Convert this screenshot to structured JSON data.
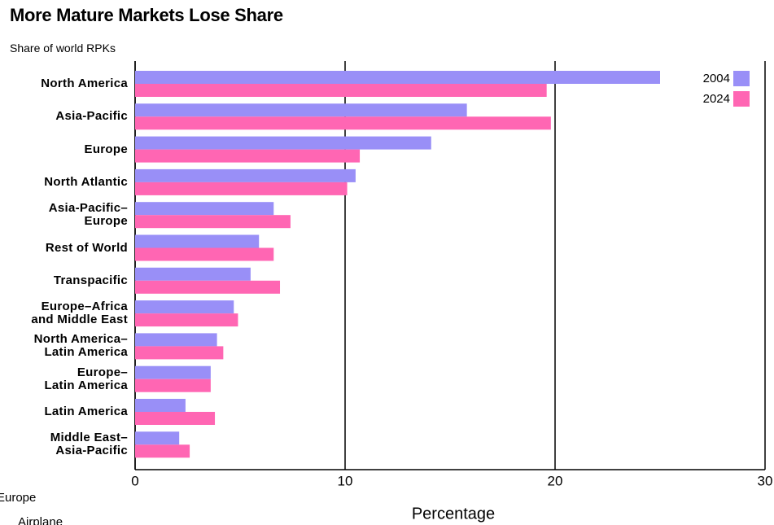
{
  "chart_data": {
    "type": "hbar",
    "title": "More Mature Markets Lose Share",
    "subtitle": "Share of world RPKs",
    "xlabel": "Percentage",
    "categories": [
      "North America",
      "Asia-Pacific",
      "Europe",
      "North Atlantic",
      "Asia-Pacific–\nEurope",
      "Rest of World",
      "Transpacific",
      "Europe–Africa\nand Middle East",
      "North America–\nLatin America",
      "Europe–\nLatin America",
      "Latin America",
      "Middle East–\nAsia-Pacific"
    ],
    "series": [
      {
        "name": "2004",
        "color": "#998ff7",
        "values": [
          25.0,
          15.8,
          14.1,
          10.5,
          6.6,
          5.9,
          5.5,
          4.7,
          3.9,
          3.6,
          2.4,
          2.1
        ]
      },
      {
        "name": "2024",
        "color": "#ff66b3",
        "values": [
          19.6,
          19.8,
          10.7,
          10.1,
          7.4,
          6.6,
          6.9,
          4.9,
          4.2,
          3.6,
          3.8,
          2.6
        ]
      }
    ],
    "xlim": [
      0,
      30
    ],
    "xticks": [
      0,
      10,
      20,
      30
    ],
    "grid": true,
    "legend": "top-right",
    "notes": [
      "Europe",
      "Airplane"
    ]
  }
}
